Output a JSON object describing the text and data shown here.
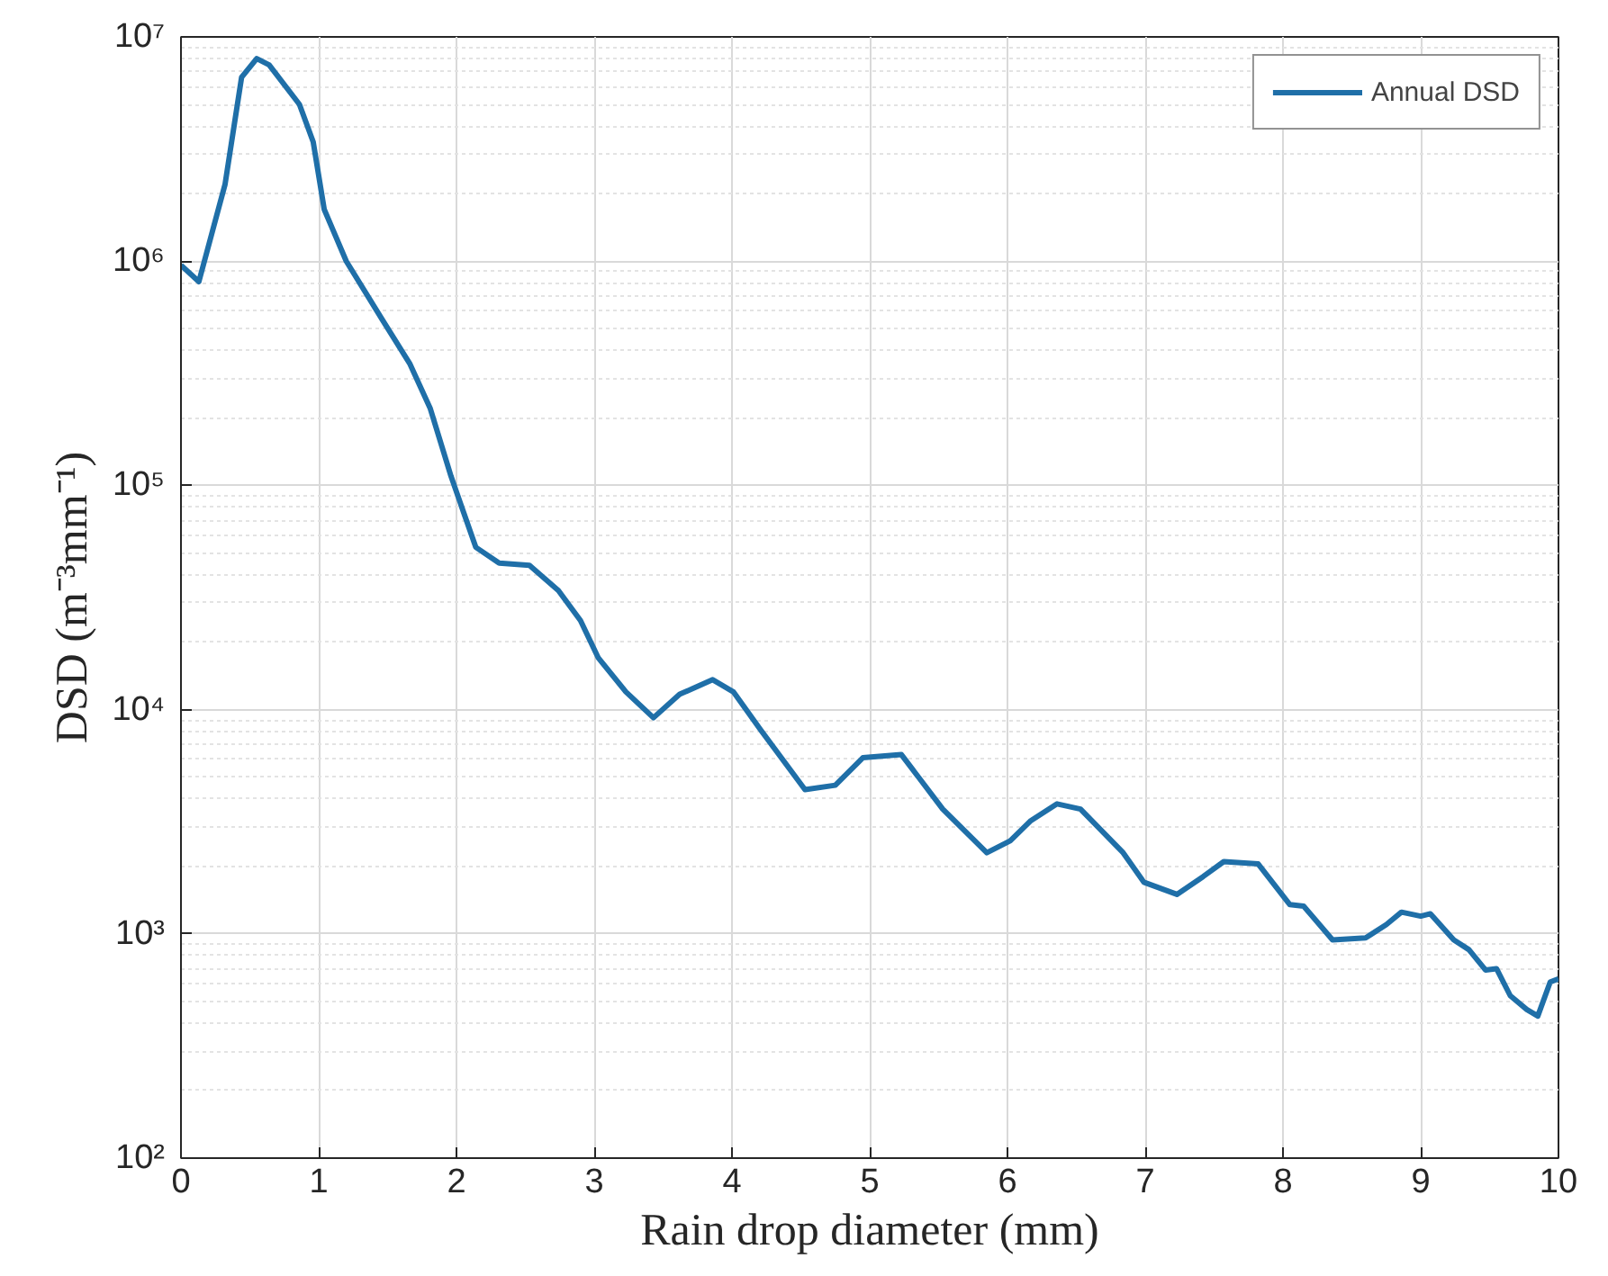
{
  "chart_data": {
    "type": "line",
    "xlabel": "Rain drop diameter (mm)",
    "ylabel": "DSD (m⁻³mm⁻¹)",
    "log": "y",
    "grid": true,
    "legend": "top right",
    "xlim": [
      0,
      10
    ],
    "xticks": [
      0,
      1,
      2,
      3,
      4,
      5,
      6,
      7,
      8,
      9,
      10
    ],
    "ylim": [
      100,
      10000000
    ],
    "yticks": [
      {
        "value": 100,
        "label": "10²"
      },
      {
        "value": 1000,
        "label": "10³"
      },
      {
        "value": 10000,
        "label": "10⁴"
      },
      {
        "value": 100000,
        "label": "10⁵"
      },
      {
        "value": 1000000,
        "label": "10⁶"
      },
      {
        "value": 10000000,
        "label": "10⁷"
      }
    ],
    "series": [
      {
        "name": "Annual DSD",
        "color": "#1f6fa8",
        "x": [
          0,
          0.13,
          0.32,
          0.44,
          0.55,
          0.64,
          0.86,
          0.96,
          1.04,
          1.2,
          1.46,
          1.66,
          1.81,
          1.96,
          2.14,
          2.31,
          2.53,
          2.74,
          2.9,
          3.03,
          3.23,
          3.43,
          3.62,
          3.86,
          4.01,
          4.21,
          4.53,
          4.75,
          4.95,
          5.23,
          5.53,
          5.85,
          6.02,
          6.17,
          6.36,
          6.53,
          6.84,
          6.99,
          7.23,
          7.42,
          7.57,
          7.82,
          8.05,
          8.15,
          8.36,
          8.6,
          8.75,
          8.86,
          9.0,
          9.07,
          9.24,
          9.35,
          9.47,
          9.55,
          9.65,
          9.77,
          9.85,
          9.94,
          10
        ],
        "values": [
          960000,
          810000,
          2200000,
          6600000,
          8000000,
          7500000,
          5000000,
          3400000,
          1700000,
          1000000,
          550000,
          350000,
          220000,
          110000,
          53000,
          45000,
          44000,
          34000,
          25000,
          17000,
          12000,
          9200,
          11700,
          13600,
          12000,
          8100,
          4400,
          4600,
          6100,
          6300,
          3600,
          2300,
          2600,
          3200,
          3800,
          3600,
          2300,
          1700,
          1500,
          1800,
          2100,
          2050,
          1350,
          1330,
          940,
          960,
          1100,
          1250,
          1200,
          1230,
          940,
          850,
          690,
          700,
          530,
          460,
          430,
          610,
          630
        ]
      }
    ]
  }
}
